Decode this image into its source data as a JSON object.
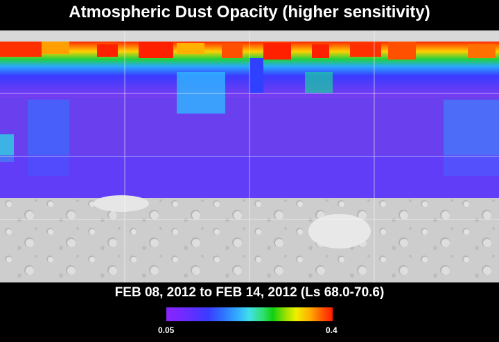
{
  "title": "Atmospheric Dust Opacity (higher sensitivity)",
  "date_range": "FEB 08, 2012 to FEB 14, 2012 (Ls 68.0-70.6)",
  "colorbar": {
    "min_label": "0.05",
    "max_label": "0.4",
    "colors": [
      "#8a24ff",
      "#3b3bff",
      "#30a8ff",
      "#40e0e8",
      "#10d010",
      "#f0f000",
      "#ffb000",
      "#ff1800"
    ]
  },
  "map": {
    "coverage": "northern hemisphere and equatorial band",
    "no_data_region": "southern hemisphere shown as grey shaded relief"
  }
}
